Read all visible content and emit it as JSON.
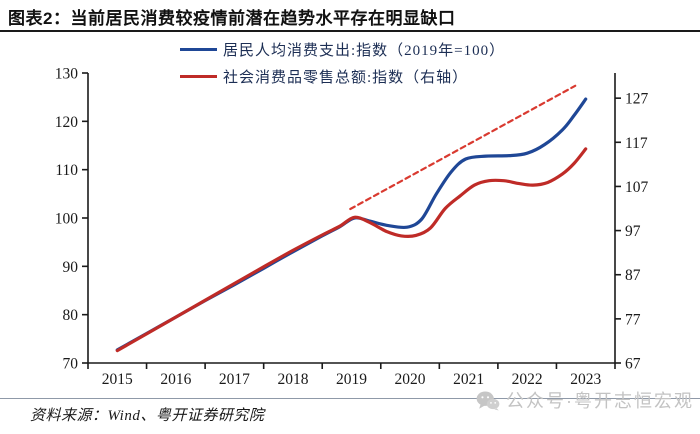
{
  "title": {
    "text": "图表2：当前居民消费较疫情前潜在趋势水平存在明显缺口"
  },
  "footer": {
    "source": "资料来源：Wind、粤开证券研究院",
    "watermark": "公众号·粤开志恒宏观"
  },
  "chart_data": {
    "type": "line",
    "title": "图表2：当前居民消费较疫情前潜在趋势水平存在明显缺口",
    "grid": false,
    "legend_position": "top-center",
    "x_categories": [
      "2015",
      "2016",
      "2017",
      "2018",
      "2019",
      "2020",
      "2021",
      "2022",
      "2023"
    ],
    "left_axis": {
      "min": 70,
      "max": 130,
      "ticks": [
        "70",
        "80",
        "90",
        "100",
        "110",
        "120",
        "130"
      ]
    },
    "right_axis": {
      "min": 67,
      "max": 132.7,
      "ticks": [
        "67",
        "77",
        "87",
        "97",
        "107",
        "117",
        "127"
      ]
    },
    "legend": [
      {
        "label": "居民人均消费支出:指数（2019年=100）",
        "color": "#1f4796"
      },
      {
        "label": "社会消费品零售总额:指数（右轴）",
        "color": "#bf2b27"
      }
    ],
    "series": [
      {
        "id": "resident-consumption-index",
        "name": "居民人均消费支出:指数（2019年=100）",
        "axis": "left",
        "color": "#1f4796",
        "style": "solid",
        "in_legend": true,
        "points": [
          [
            2015,
            72.7
          ],
          [
            2015.5,
            76.1
          ],
          [
            2016,
            79.5
          ],
          [
            2016.5,
            82.9
          ],
          [
            2017,
            86.2
          ],
          [
            2017.5,
            89.6
          ],
          [
            2018,
            93.0
          ],
          [
            2018.5,
            96.3
          ],
          [
            2018.8,
            98.2
          ],
          [
            2019.05,
            100.0
          ],
          [
            2019.3,
            99.4
          ],
          [
            2019.6,
            98.5
          ],
          [
            2019.95,
            98.1
          ],
          [
            2020.2,
            99.8
          ],
          [
            2020.45,
            105.0
          ],
          [
            2020.7,
            109.5
          ],
          [
            2020.95,
            112.2
          ],
          [
            2021.3,
            112.8
          ],
          [
            2021.7,
            112.9
          ],
          [
            2022.0,
            113.4
          ],
          [
            2022.3,
            115.2
          ],
          [
            2022.6,
            118.2
          ],
          [
            2022.8,
            121.2
          ],
          [
            2023,
            124.6
          ]
        ]
      },
      {
        "id": "retail-sales-index",
        "name": "社会消费品零售总额:指数（右轴）",
        "axis": "right",
        "color": "#bf2b27",
        "style": "solid",
        "in_legend": true,
        "points": [
          [
            2015,
            69.8
          ],
          [
            2015.5,
            73.6
          ],
          [
            2016,
            77.4
          ],
          [
            2016.5,
            81.2
          ],
          [
            2017,
            85.0
          ],
          [
            2017.5,
            88.8
          ],
          [
            2018,
            92.5
          ],
          [
            2018.5,
            96.0
          ],
          [
            2018.8,
            98.0
          ],
          [
            2019.05,
            100.0
          ],
          [
            2019.3,
            98.9
          ],
          [
            2019.6,
            96.8
          ],
          [
            2019.85,
            95.8
          ],
          [
            2020.1,
            95.9
          ],
          [
            2020.35,
            97.6
          ],
          [
            2020.6,
            102.0
          ],
          [
            2020.85,
            104.8
          ],
          [
            2021.1,
            107.3
          ],
          [
            2021.35,
            108.3
          ],
          [
            2021.6,
            108.3
          ],
          [
            2021.85,
            107.7
          ],
          [
            2022.1,
            107.3
          ],
          [
            2022.35,
            107.9
          ],
          [
            2022.6,
            109.8
          ],
          [
            2022.8,
            112.2
          ],
          [
            2023,
            115.5
          ]
        ]
      },
      {
        "id": "pre-pandemic-trend-extension",
        "name": "trend-extension-dashed",
        "axis": "right",
        "color": "#d93a30",
        "style": "dashed",
        "in_legend": false,
        "points": [
          [
            2018.98,
            101.9
          ],
          [
            2022.82,
            129.8
          ]
        ]
      }
    ]
  }
}
